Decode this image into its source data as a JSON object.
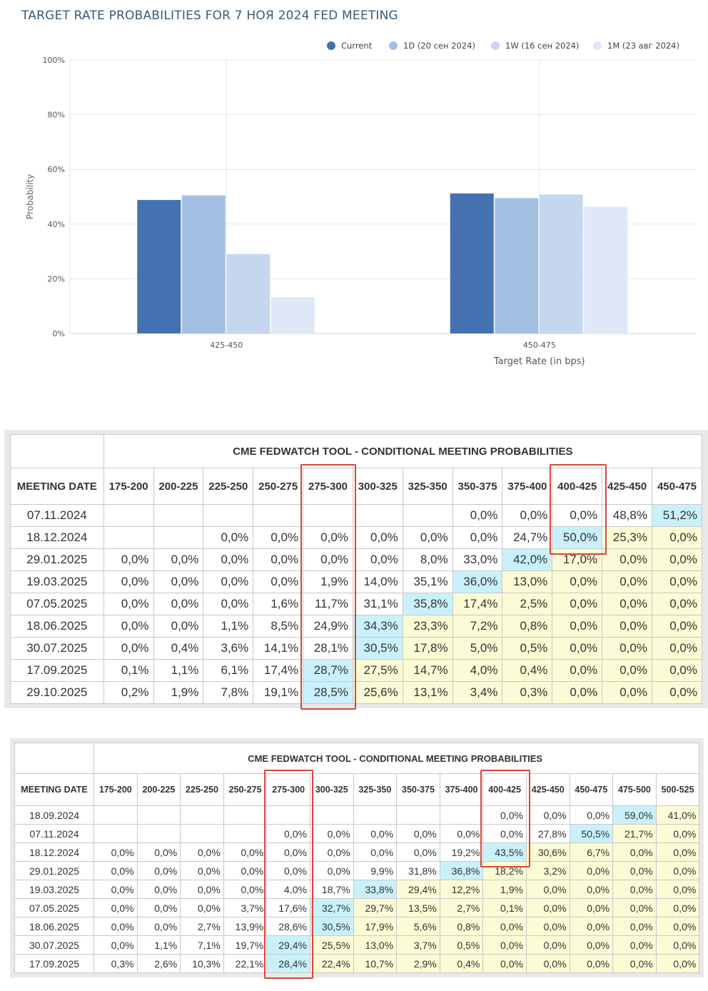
{
  "chart_data": {
    "type": "bar",
    "title": "TARGET RATE PROBABILITIES FOR 7 НОЯ 2024 FED MEETING",
    "xlabel": "Target Rate (in bps)",
    "ylabel": "Probability",
    "categories": [
      "425-450",
      "450-475"
    ],
    "series": [
      {
        "name": "Current",
        "values": [
          48.8,
          51.2
        ]
      },
      {
        "name": "1D (20 сен 2024)",
        "values": [
          50.5,
          49.5
        ]
      },
      {
        "name": "1W (16 сен 2024)",
        "values": [
          29.0,
          50.8
        ]
      },
      {
        "name": "1M (23 авг 2024)",
        "values": [
          13.2,
          46.3
        ]
      }
    ],
    "ylim": [
      0,
      100
    ],
    "yticks": [
      "0%",
      "20%",
      "40%",
      "60%",
      "80%",
      "100%"
    ],
    "legend_position": "top-right",
    "grid": true,
    "colors": [
      "#4472b0",
      "#a3c0e3",
      "#c4d7ef",
      "#dfe8f6"
    ]
  },
  "table1": {
    "title": "CME FEDWATCH TOOL - CONDITIONAL MEETING PROBABILITIES",
    "date_header": "MEETING DATE",
    "ranges": [
      "175-200",
      "200-225",
      "225-250",
      "250-275",
      "275-300",
      "300-325",
      "325-350",
      "350-375",
      "375-400",
      "400-425",
      "425-450",
      "450-475"
    ],
    "rows": [
      {
        "date": "07.11.2024",
        "cells": [
          "",
          "",
          "",
          "",
          "",
          "",
          "",
          "0,0%",
          "0,0%",
          "0,0%",
          "48,8%",
          "51,2%"
        ],
        "peak": 11
      },
      {
        "date": "18.12.2024",
        "cells": [
          "",
          "",
          "0,0%",
          "0,0%",
          "0,0%",
          "0,0%",
          "0,0%",
          "0,0%",
          "24,7%",
          "50,0%",
          "25,3%",
          "0,0%"
        ],
        "peak": 9
      },
      {
        "date": "29.01.2025",
        "cells": [
          "0,0%",
          "0,0%",
          "0,0%",
          "0,0%",
          "0,0%",
          "0,0%",
          "8,0%",
          "33,0%",
          "42,0%",
          "17,0%",
          "0,0%",
          "0,0%"
        ],
        "peak": 8
      },
      {
        "date": "19.03.2025",
        "cells": [
          "0,0%",
          "0,0%",
          "0,0%",
          "0,0%",
          "1,9%",
          "14,0%",
          "35,1%",
          "36,0%",
          "13,0%",
          "0,0%",
          "0,0%",
          "0,0%"
        ],
        "peak": 7
      },
      {
        "date": "07.05.2025",
        "cells": [
          "0,0%",
          "0,0%",
          "0,0%",
          "1,6%",
          "11,7%",
          "31,1%",
          "35,8%",
          "17,4%",
          "2,5%",
          "0,0%",
          "0,0%",
          "0,0%"
        ],
        "peak": 6
      },
      {
        "date": "18.06.2025",
        "cells": [
          "0,0%",
          "0,0%",
          "1,1%",
          "8,5%",
          "24,9%",
          "34,3%",
          "23,3%",
          "7,2%",
          "0,8%",
          "0,0%",
          "0,0%",
          "0,0%"
        ],
        "peak": 5
      },
      {
        "date": "30.07.2025",
        "cells": [
          "0,0%",
          "0,4%",
          "3,6%",
          "14,1%",
          "28,1%",
          "30,5%",
          "17,8%",
          "5,0%",
          "0,5%",
          "0,0%",
          "0,0%",
          "0,0%"
        ],
        "peak": 5
      },
      {
        "date": "17.09.2025",
        "cells": [
          "0,1%",
          "1,1%",
          "6,1%",
          "17,4%",
          "28,7%",
          "27,5%",
          "14,7%",
          "4,0%",
          "0,4%",
          "0,0%",
          "0,0%",
          "0,0%"
        ],
        "peak": 4
      },
      {
        "date": "29.10.2025",
        "cells": [
          "0,2%",
          "1,9%",
          "7,8%",
          "19,1%",
          "28,5%",
          "25,6%",
          "13,1%",
          "3,4%",
          "0,3%",
          "0,0%",
          "0,0%",
          "0,0%"
        ],
        "peak": 4
      }
    ]
  },
  "table2": {
    "title": "CME FEDWATCH TOOL - CONDITIONAL MEETING PROBABILITIES",
    "date_header": "MEETING DATE",
    "ranges": [
      "175-200",
      "200-225",
      "225-250",
      "250-275",
      "275-300",
      "300-325",
      "325-350",
      "350-375",
      "375-400",
      "400-425",
      "425-450",
      "450-475",
      "475-500",
      "500-525"
    ],
    "rows": [
      {
        "date": "18.09.2024",
        "cells": [
          "",
          "",
          "",
          "",
          "",
          "",
          "",
          "",
          "",
          "0,0%",
          "0,0%",
          "0,0%",
          "59,0%",
          "41,0%"
        ],
        "peak": 12
      },
      {
        "date": "07.11.2024",
        "cells": [
          "",
          "",
          "",
          "",
          "0,0%",
          "0,0%",
          "0,0%",
          "0,0%",
          "0,0%",
          "0,0%",
          "27,8%",
          "50,5%",
          "21,7%",
          "0,0%"
        ],
        "peak": 11
      },
      {
        "date": "18.12.2024",
        "cells": [
          "0,0%",
          "0,0%",
          "0,0%",
          "0,0%",
          "0,0%",
          "0,0%",
          "0,0%",
          "0,0%",
          "19,2%",
          "43,5%",
          "30,6%",
          "6,7%",
          "0,0%",
          "0,0%"
        ],
        "peak": 9
      },
      {
        "date": "29.01.2025",
        "cells": [
          "0,0%",
          "0,0%",
          "0,0%",
          "0,0%",
          "0,0%",
          "0,0%",
          "9,9%",
          "31,8%",
          "36,8%",
          "18,2%",
          "3,2%",
          "0,0%",
          "0,0%",
          "0,0%"
        ],
        "peak": 8
      },
      {
        "date": "19.03.2025",
        "cells": [
          "0,0%",
          "0,0%",
          "0,0%",
          "0,0%",
          "4,0%",
          "18,7%",
          "33,8%",
          "29,4%",
          "12,2%",
          "1,9%",
          "0,0%",
          "0,0%",
          "0,0%",
          "0,0%"
        ],
        "peak": 6
      },
      {
        "date": "07.05.2025",
        "cells": [
          "0,0%",
          "0,0%",
          "0,0%",
          "3,7%",
          "17,6%",
          "32,7%",
          "29,7%",
          "13,5%",
          "2,7%",
          "0,1%",
          "0,0%",
          "0,0%",
          "0,0%",
          "0,0%"
        ],
        "peak": 5
      },
      {
        "date": "18.06.2025",
        "cells": [
          "0,0%",
          "0,0%",
          "2,7%",
          "13,9%",
          "28,6%",
          "30,5%",
          "17,9%",
          "5,6%",
          "0,8%",
          "0,0%",
          "0,0%",
          "0,0%",
          "0,0%",
          "0,0%"
        ],
        "peak": 5
      },
      {
        "date": "30.07.2025",
        "cells": [
          "0,0%",
          "1,1%",
          "7,1%",
          "19,7%",
          "29,4%",
          "25,5%",
          "13,0%",
          "3,7%",
          "0,5%",
          "0,0%",
          "0,0%",
          "0,0%",
          "0,0%",
          "0,0%"
        ],
        "peak": 4
      },
      {
        "date": "17.09.2025",
        "cells": [
          "0,3%",
          "2,6%",
          "10,3%",
          "22,1%",
          "28,4%",
          "22,4%",
          "10,7%",
          "2,9%",
          "0,4%",
          "0,0%",
          "0,0%",
          "0,0%",
          "0,0%",
          "0,0%"
        ],
        "peak": 4
      }
    ]
  }
}
